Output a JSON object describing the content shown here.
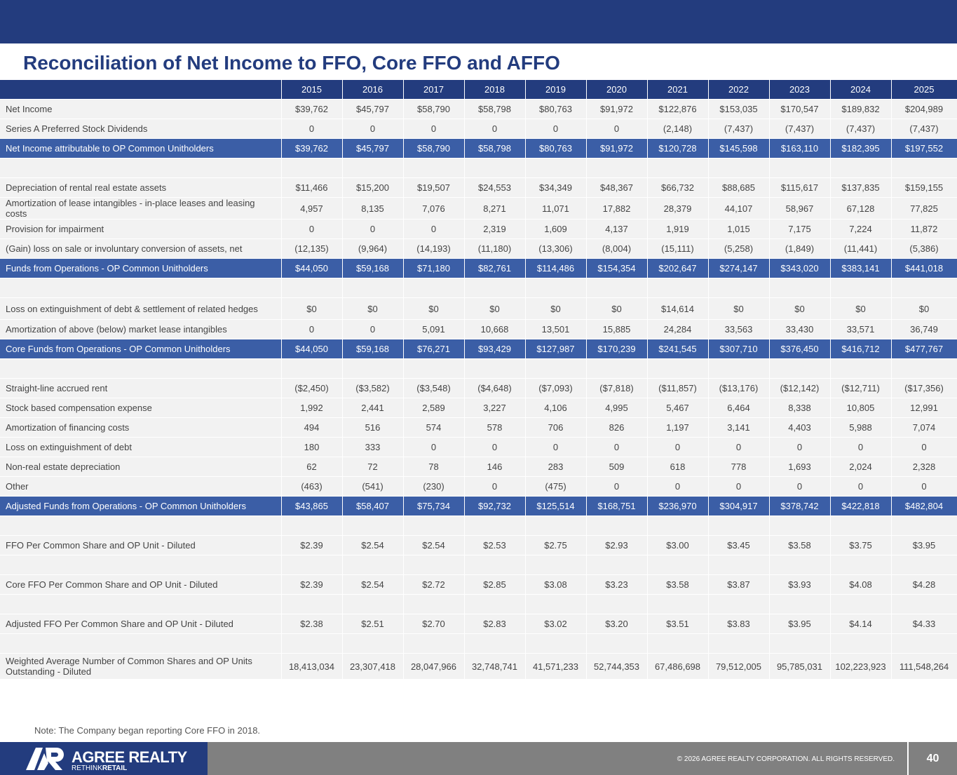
{
  "title": "Reconciliation of Net Income to FFO, Core FFO and AFFO",
  "years": [
    "2015",
    "2016",
    "2017",
    "2018",
    "2019",
    "2020",
    "2021",
    "2022",
    "2023",
    "2024",
    "2025"
  ],
  "rows": [
    {
      "kind": "norm",
      "label": "Net Income",
      "values": [
        "$39,762",
        "$45,797",
        "$58,790",
        "$58,798",
        "$80,763",
        "$91,972",
        "$122,876",
        "$153,035",
        "$170,547",
        "$189,832",
        "$204,989"
      ]
    },
    {
      "kind": "norm",
      "label": "Series A Preferred Stock Dividends",
      "values": [
        "0",
        "0",
        "0",
        "0",
        "0",
        "0",
        "(2,148)",
        "(7,437)",
        "(7,437)",
        "(7,437)",
        "(7,437)"
      ]
    },
    {
      "kind": "tot",
      "label": "Net Income attributable to OP Common Unitholders",
      "values": [
        "$39,762",
        "$45,797",
        "$58,790",
        "$58,798",
        "$80,763",
        "$91,972",
        "$120,728",
        "$145,598",
        "$163,110",
        "$182,395",
        "$197,552"
      ]
    },
    {
      "kind": "blank",
      "label": "",
      "values": [
        "",
        "",
        "",
        "",
        "",
        "",
        "",
        "",
        "",
        "",
        ""
      ]
    },
    {
      "kind": "norm",
      "label": "Depreciation of rental real estate assets",
      "values": [
        "$11,466",
        "$15,200",
        "$19,507",
        "$24,553",
        "$34,349",
        "$48,367",
        "$66,732",
        "$88,685",
        "$115,617",
        "$137,835",
        "$159,155"
      ]
    },
    {
      "kind": "norm",
      "wrap": true,
      "label": "Amortization of lease intangibles - in-place leases and leasing costs",
      "values": [
        "4,957",
        "8,135",
        "7,076",
        "8,271",
        "11,071",
        "17,882",
        "28,379",
        "44,107",
        "58,967",
        "67,128",
        "77,825"
      ]
    },
    {
      "kind": "norm",
      "label": "Provision for impairment",
      "values": [
        "0",
        "0",
        "0",
        "2,319",
        "1,609",
        "4,137",
        "1,919",
        "1,015",
        "7,175",
        "7,224",
        "11,872"
      ]
    },
    {
      "kind": "norm",
      "label": "(Gain) loss on sale or involuntary conversion of assets, net",
      "values": [
        "(12,135)",
        "(9,964)",
        "(14,193)",
        "(11,180)",
        "(13,306)",
        "(8,004)",
        "(15,111)",
        "(5,258)",
        "(1,849)",
        "(11,441)",
        "(5,386)"
      ]
    },
    {
      "kind": "tot",
      "label": "Funds from Operations - OP Common Unitholders",
      "values": [
        "$44,050",
        "$59,168",
        "$71,180",
        "$82,761",
        "$114,486",
        "$154,354",
        "$202,647",
        "$274,147",
        "$343,020",
        "$383,141",
        "$441,018"
      ]
    },
    {
      "kind": "blank",
      "label": "",
      "values": [
        "",
        "",
        "",
        "",
        "",
        "",
        "",
        "",
        "",
        "",
        ""
      ]
    },
    {
      "kind": "norm",
      "tall": true,
      "label": "Loss on extinguishment of debt & settlement of related hedges",
      "values": [
        "$0",
        "$0",
        "$0",
        "$0",
        "$0",
        "$0",
        "$14,614",
        "$0",
        "$0",
        "$0",
        "$0"
      ]
    },
    {
      "kind": "norm",
      "label": "Amortization of above (below) market lease intangibles",
      "values": [
        "0",
        "0",
        "5,091",
        "10,668",
        "13,501",
        "15,885",
        "24,284",
        "33,563",
        "33,430",
        "33,571",
        "36,749"
      ]
    },
    {
      "kind": "tot",
      "label": "Core Funds from Operations - OP Common Unitholders",
      "values": [
        "$44,050",
        "$59,168",
        "$76,271",
        "$93,429",
        "$127,987",
        "$170,239",
        "$241,545",
        "$307,710",
        "$376,450",
        "$416,712",
        "$477,767"
      ]
    },
    {
      "kind": "blank",
      "label": "",
      "values": [
        "",
        "",
        "",
        "",
        "",
        "",
        "",
        "",
        "",
        "",
        ""
      ]
    },
    {
      "kind": "norm",
      "label": "Straight-line accrued rent",
      "values": [
        "($2,450)",
        "($3,582)",
        "($3,548)",
        "($4,648)",
        "($7,093)",
        "($7,818)",
        "($11,857)",
        "($13,176)",
        "($12,142)",
        "($12,711)",
        "($17,356)"
      ]
    },
    {
      "kind": "norm",
      "label": "Stock based compensation expense",
      "values": [
        "1,992",
        "2,441",
        "2,589",
        "3,227",
        "4,106",
        "4,995",
        "5,467",
        "6,464",
        "8,338",
        "10,805",
        "12,991"
      ]
    },
    {
      "kind": "norm",
      "label": "Amortization of financing costs",
      "values": [
        "494",
        "516",
        "574",
        "578",
        "706",
        "826",
        "1,197",
        "3,141",
        "4,403",
        "5,988",
        "7,074"
      ]
    },
    {
      "kind": "norm",
      "label": "Loss on extinguishment of debt",
      "values": [
        "180",
        "333",
        "0",
        "0",
        "0",
        "0",
        "0",
        "0",
        "0",
        "0",
        "0"
      ]
    },
    {
      "kind": "norm",
      "label": "Non-real estate depreciation",
      "values": [
        "62",
        "72",
        "78",
        "146",
        "283",
        "509",
        "618",
        "778",
        "1,693",
        "2,024",
        "2,328"
      ]
    },
    {
      "kind": "norm",
      "label": "Other",
      "values": [
        "(463)",
        "(541)",
        "(230)",
        "0",
        "(475)",
        "0",
        "0",
        "0",
        "0",
        "0",
        "0"
      ]
    },
    {
      "kind": "tot",
      "label": "Adjusted Funds from Operations - OP Common Unitholders",
      "values": [
        "$43,865",
        "$58,407",
        "$75,734",
        "$92,732",
        "$125,514",
        "$168,751",
        "$236,970",
        "$304,917",
        "$378,742",
        "$422,818",
        "$482,804"
      ]
    },
    {
      "kind": "blank",
      "label": "",
      "values": [
        "",
        "",
        "",
        "",
        "",
        "",
        "",
        "",
        "",
        "",
        ""
      ]
    },
    {
      "kind": "norm",
      "label": "FFO Per Common Share and OP Unit - Diluted",
      "values": [
        "$2.39",
        "$2.54",
        "$2.54",
        "$2.53",
        "$2.75",
        "$2.93",
        "$3.00",
        "$3.45",
        "$3.58",
        "$3.75",
        "$3.95"
      ]
    },
    {
      "kind": "blank",
      "label": "",
      "values": [
        "",
        "",
        "",
        "",
        "",
        "",
        "",
        "",
        "",
        "",
        ""
      ]
    },
    {
      "kind": "norm",
      "label": "Core FFO Per Common Share and OP Unit - Diluted",
      "values": [
        "$2.39",
        "$2.54",
        "$2.72",
        "$2.85",
        "$3.08",
        "$3.23",
        "$3.58",
        "$3.87",
        "$3.93",
        "$4.08",
        "$4.28"
      ]
    },
    {
      "kind": "blank",
      "label": "",
      "values": [
        "",
        "",
        "",
        "",
        "",
        "",
        "",
        "",
        "",
        "",
        ""
      ]
    },
    {
      "kind": "norm",
      "label": "Adjusted FFO Per Common Share and OP Unit - Diluted",
      "values": [
        "$2.38",
        "$2.51",
        "$2.70",
        "$2.83",
        "$3.02",
        "$3.20",
        "$3.51",
        "$3.83",
        "$3.95",
        "$4.14",
        "$4.33"
      ]
    },
    {
      "kind": "blank",
      "label": "",
      "values": [
        "",
        "",
        "",
        "",
        "",
        "",
        "",
        "",
        "",
        "",
        ""
      ]
    },
    {
      "kind": "norm",
      "wrap": true,
      "label": "Weighted Average Number of Common Shares and OP Units Outstanding - Diluted",
      "values": [
        "18,413,034",
        "23,307,418",
        "28,047,966",
        "32,748,741",
        "41,571,233",
        "52,744,353",
        "67,486,698",
        "79,512,005",
        "95,785,031",
        "102,223,923",
        "111,548,264"
      ]
    }
  ],
  "note": "Note: The Company began reporting Core FFO in 2018.",
  "footer": {
    "logo_name": "AGREE REALTY",
    "logo_tag_re": "RETHINK",
    "logo_tag_retail": "RETAIL",
    "copyright": "© 2026 AGREE REALTY CORPORATION. ALL RIGHTS RESERVED.",
    "page_number": "40"
  },
  "colors": {
    "navy": "#233c7e",
    "total_row": "#3b5ea6",
    "row_bg": "#f2f2f2",
    "footer_gray": "#808080"
  }
}
